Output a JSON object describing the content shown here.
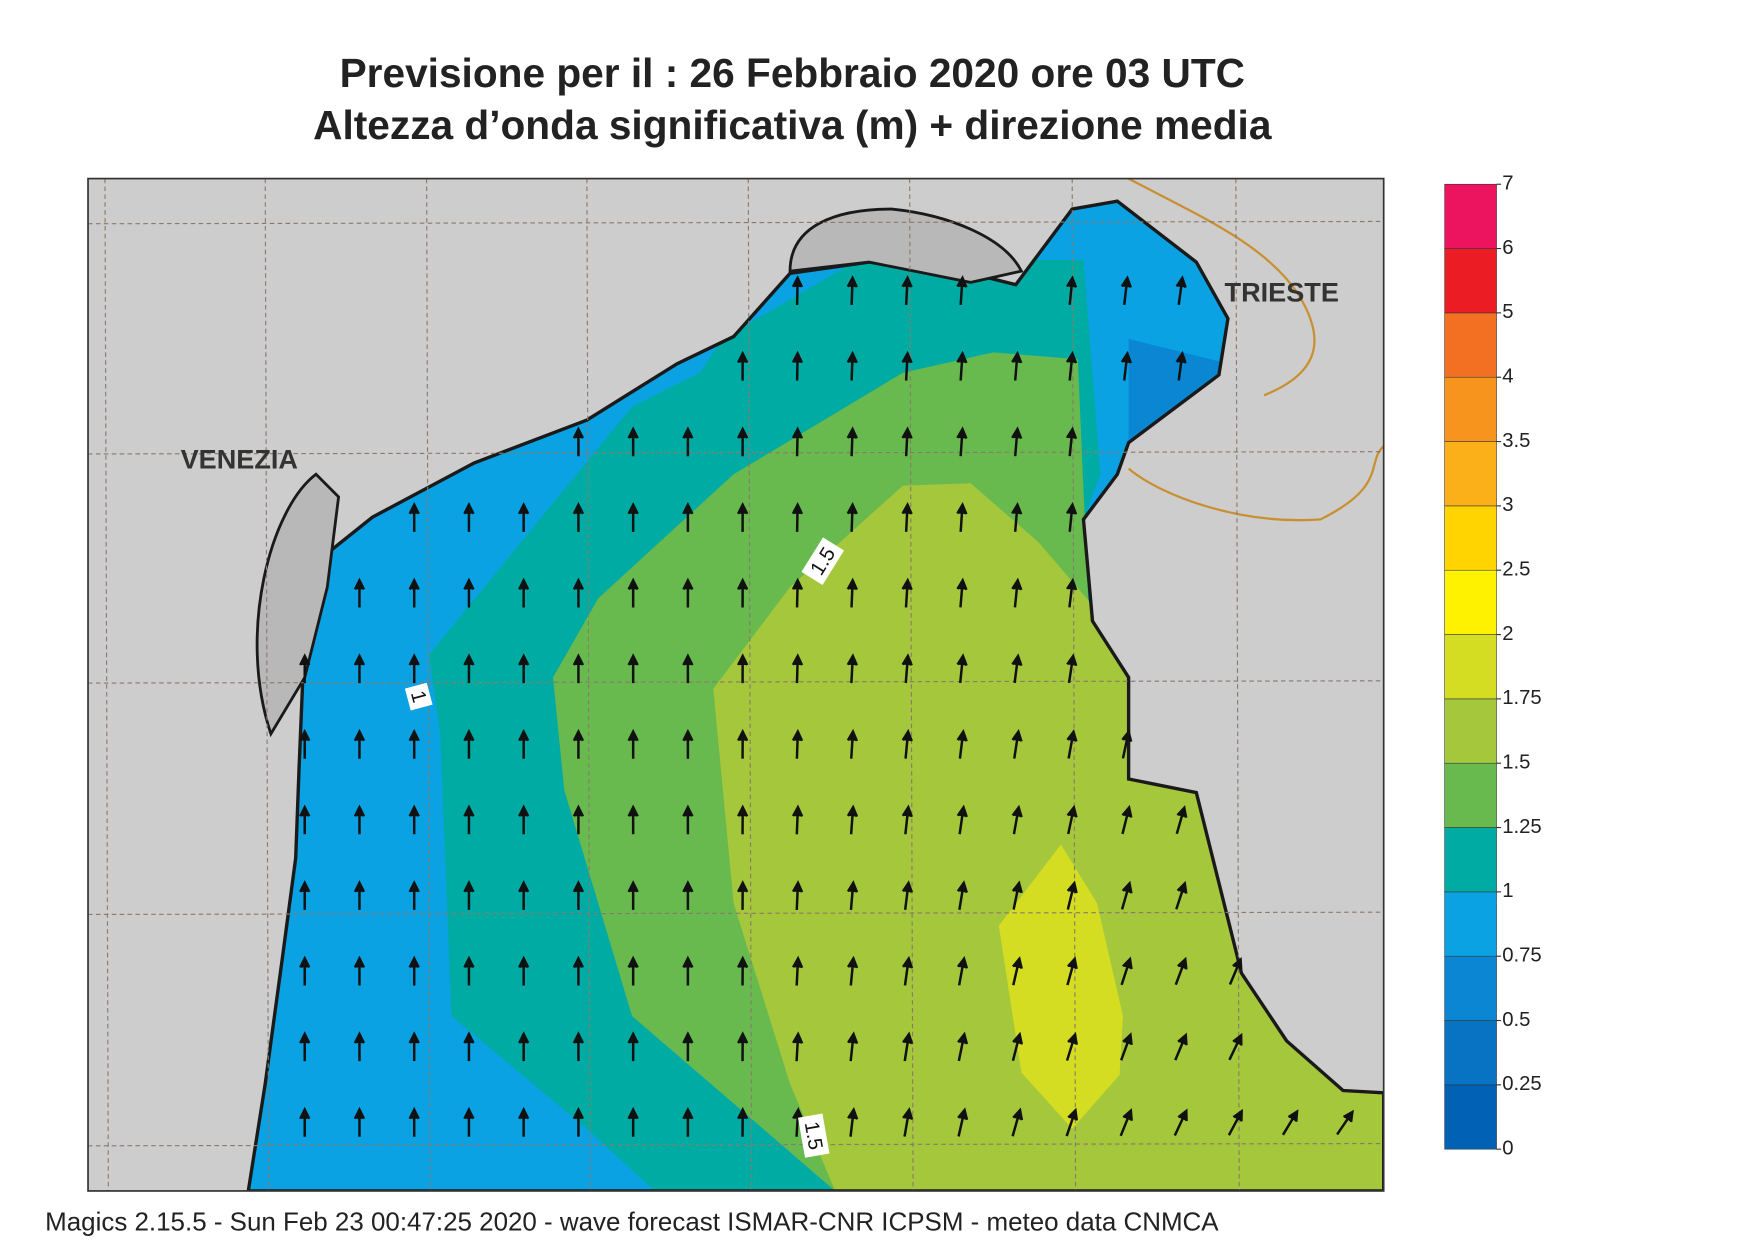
{
  "header": {
    "title": "Previsione per il  :  26  Febbraio 2020   ore 03 UTC",
    "subtitle": "Altezza d’onda significativa (m) + direzione media"
  },
  "map": {
    "cities": [
      "VENEZIA",
      "TRIESTE"
    ],
    "contour_labels": [
      "1",
      "1.5",
      "1.5"
    ]
  },
  "colorbar": {
    "levels": [
      0,
      0.25,
      0.5,
      0.75,
      1,
      1.25,
      1.5,
      1.75,
      2,
      2.5,
      3,
      3.5,
      4,
      5,
      6,
      7
    ],
    "colors": [
      "#0061b5",
      "#0873c3",
      "#0a86d2",
      "#0aa2e2",
      "#00aba4",
      "#68b94e",
      "#a4c73b",
      "#d4dd22",
      "#fff200",
      "#ffd400",
      "#fbb01a",
      "#f7941e",
      "#f37022",
      "#ec1c24",
      "#ec145f"
    ]
  },
  "footer": "Magics 2.15.5 - Sun Feb 23 00:47:25 2020 - wave forecast  ISMAR-CNR  ICPSM - meteo data   CNMCA"
}
